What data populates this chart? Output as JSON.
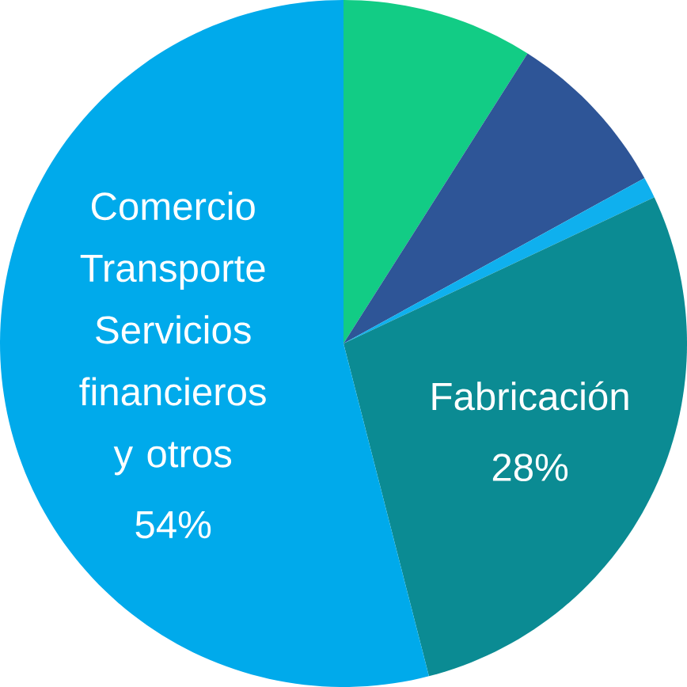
{
  "chart_data": {
    "type": "pie",
    "categories": [
      null,
      null,
      null,
      "Fabricación",
      "Comercio Transporte Servicios financieros y otros"
    ],
    "values": [
      9,
      8,
      1,
      28,
      54
    ],
    "colors": [
      "#12cc85",
      "#2e5597",
      "#0fb0ee",
      "#0b8b93",
      "#00aaeb"
    ],
    "value_labels": [
      null,
      null,
      null,
      "28%",
      "54%"
    ]
  }
}
